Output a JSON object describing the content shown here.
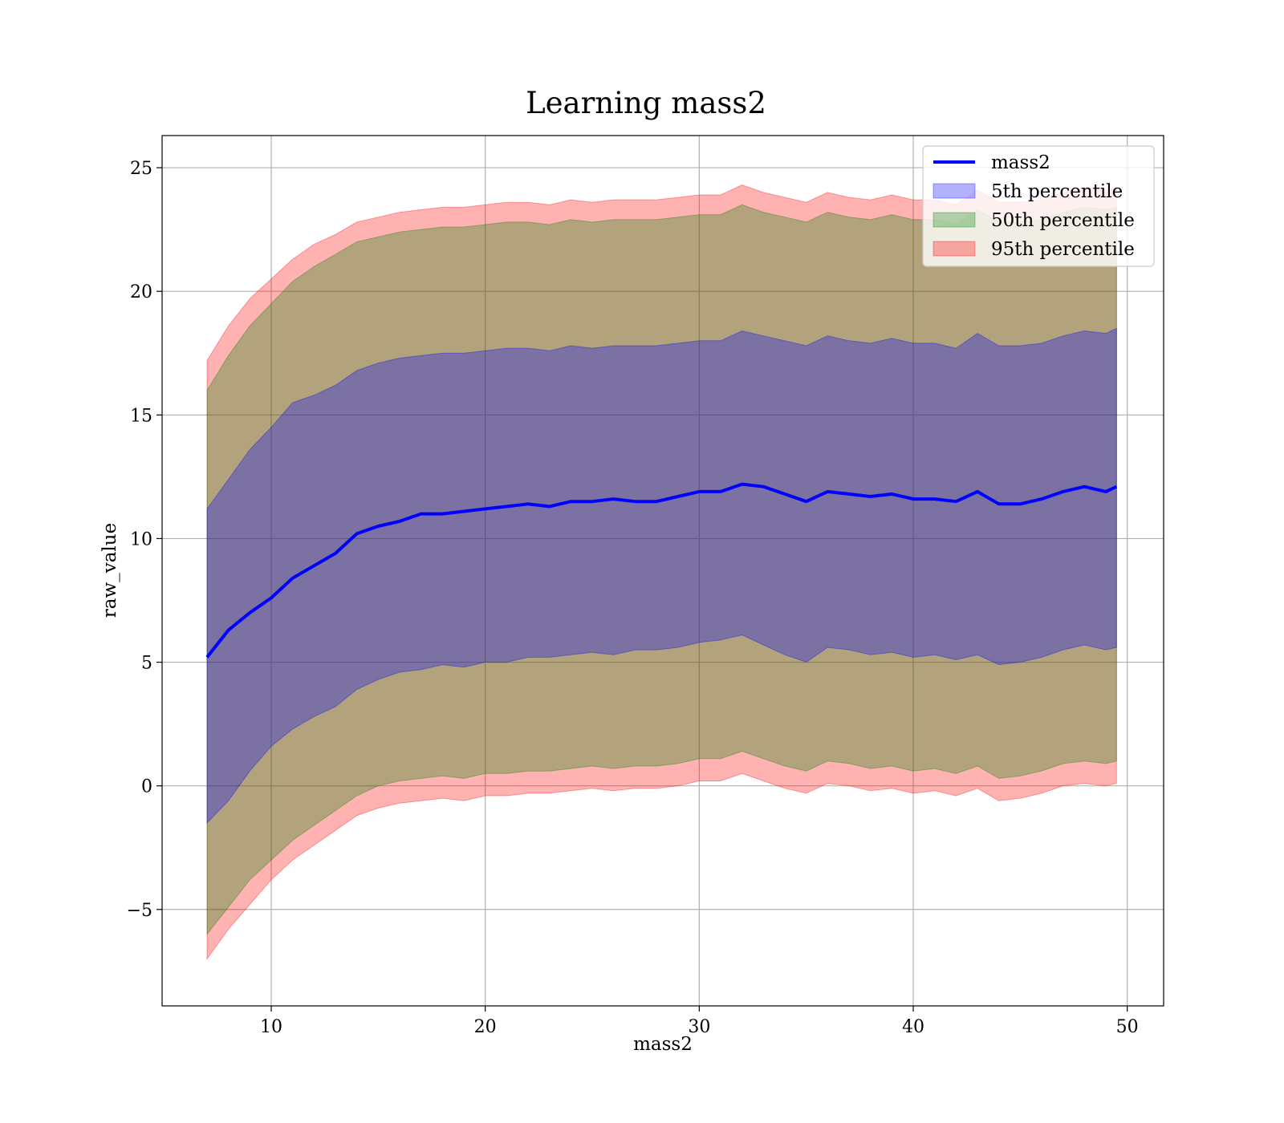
{
  "chart_data": {
    "type": "area",
    "title": "Learning mass2",
    "xlabel": "mass2",
    "ylabel": "raw_value",
    "xlim": [
      4.9,
      51.7
    ],
    "ylim": [
      -8.9,
      26.3
    ],
    "xticks": [
      10,
      20,
      30,
      40,
      50
    ],
    "xtick_labels": [
      "10",
      "20",
      "30",
      "40",
      "50"
    ],
    "yticks": [
      -5,
      0,
      5,
      10,
      15,
      20,
      25
    ],
    "ytick_labels": [
      "−5",
      "0",
      "5",
      "10",
      "15",
      "20",
      "25"
    ],
    "grid": true,
    "legend_position": "top-right",
    "x": [
      7,
      8,
      9,
      10,
      11,
      12,
      13,
      14,
      15,
      16,
      17,
      18,
      19,
      20,
      21,
      22,
      23,
      24,
      25,
      26,
      27,
      28,
      29,
      30,
      31,
      32,
      33,
      34,
      35,
      36,
      37,
      38,
      39,
      40,
      41,
      42,
      43,
      44,
      45,
      46,
      47,
      48,
      49,
      49.5
    ],
    "series": [
      {
        "name": "mass2",
        "kind": "line",
        "color": "#0000ff",
        "values": [
          5.2,
          6.3,
          7.0,
          7.6,
          8.4,
          8.9,
          9.4,
          10.2,
          10.5,
          10.7,
          11.0,
          11.0,
          11.1,
          11.2,
          11.3,
          11.4,
          11.3,
          11.5,
          11.5,
          11.6,
          11.5,
          11.5,
          11.7,
          11.9,
          11.9,
          12.2,
          12.1,
          11.8,
          11.5,
          11.9,
          11.8,
          11.7,
          11.8,
          11.6,
          11.6,
          11.5,
          11.9,
          11.4,
          11.4,
          11.6,
          11.9,
          12.1,
          11.9,
          12.1
        ]
      },
      {
        "name": "5th percentile",
        "kind": "band",
        "color": "#0000ff",
        "lower": [
          -1.5,
          -0.6,
          0.6,
          1.6,
          2.3,
          2.8,
          3.2,
          3.9,
          4.3,
          4.6,
          4.7,
          4.9,
          4.8,
          5.0,
          5.0,
          5.2,
          5.2,
          5.3,
          5.4,
          5.3,
          5.5,
          5.5,
          5.6,
          5.8,
          5.9,
          6.1,
          5.7,
          5.3,
          5.0,
          5.6,
          5.5,
          5.3,
          5.4,
          5.2,
          5.3,
          5.1,
          5.3,
          4.9,
          5.0,
          5.2,
          5.5,
          5.7,
          5.5,
          5.6
        ],
        "upper": [
          11.2,
          12.4,
          13.6,
          14.5,
          15.5,
          15.8,
          16.2,
          16.8,
          17.1,
          17.3,
          17.4,
          17.5,
          17.5,
          17.6,
          17.7,
          17.7,
          17.6,
          17.8,
          17.7,
          17.8,
          17.8,
          17.8,
          17.9,
          18.0,
          18.0,
          18.4,
          18.2,
          18.0,
          17.8,
          18.2,
          18.0,
          17.9,
          18.1,
          17.9,
          17.9,
          17.7,
          18.3,
          17.8,
          17.8,
          17.9,
          18.2,
          18.4,
          18.3,
          18.5
        ]
      },
      {
        "name": "50th percentile",
        "kind": "band",
        "color": "#008000",
        "lower": [
          -6.0,
          -4.9,
          -3.8,
          -3.0,
          -2.2,
          -1.6,
          -1.0,
          -0.4,
          0.0,
          0.2,
          0.3,
          0.4,
          0.3,
          0.5,
          0.5,
          0.6,
          0.6,
          0.7,
          0.8,
          0.7,
          0.8,
          0.8,
          0.9,
          1.1,
          1.1,
          1.4,
          1.1,
          0.8,
          0.6,
          1.0,
          0.9,
          0.7,
          0.8,
          0.6,
          0.7,
          0.5,
          0.8,
          0.3,
          0.4,
          0.6,
          0.9,
          1.0,
          0.9,
          1.0
        ],
        "upper": [
          16.0,
          17.4,
          18.6,
          19.5,
          20.4,
          21.0,
          21.5,
          22.0,
          22.2,
          22.4,
          22.5,
          22.6,
          22.6,
          22.7,
          22.8,
          22.8,
          22.7,
          22.9,
          22.8,
          22.9,
          22.9,
          22.9,
          23.0,
          23.1,
          23.1,
          23.5,
          23.2,
          23.0,
          22.8,
          23.2,
          23.0,
          22.9,
          23.1,
          22.9,
          22.9,
          22.7,
          23.3,
          22.8,
          22.8,
          22.9,
          23.2,
          23.4,
          23.3,
          23.4
        ]
      },
      {
        "name": "95th percentile",
        "kind": "band",
        "color": "#ff0000",
        "lower": [
          -7.0,
          -5.8,
          -4.8,
          -3.8,
          -3.0,
          -2.4,
          -1.8,
          -1.2,
          -0.9,
          -0.7,
          -0.6,
          -0.5,
          -0.6,
          -0.4,
          -0.4,
          -0.3,
          -0.3,
          -0.2,
          -0.1,
          -0.2,
          -0.1,
          -0.1,
          0.0,
          0.2,
          0.2,
          0.5,
          0.2,
          -0.1,
          -0.3,
          0.1,
          0.0,
          -0.2,
          -0.1,
          -0.3,
          -0.2,
          -0.4,
          -0.1,
          -0.6,
          -0.5,
          -0.3,
          0.0,
          0.1,
          0.0,
          0.1
        ],
        "upper": [
          17.2,
          18.6,
          19.7,
          20.5,
          21.3,
          21.9,
          22.3,
          22.8,
          23.0,
          23.2,
          23.3,
          23.4,
          23.4,
          23.5,
          23.6,
          23.6,
          23.5,
          23.7,
          23.6,
          23.7,
          23.7,
          23.7,
          23.8,
          23.9,
          23.9,
          24.3,
          24.0,
          23.8,
          23.6,
          24.0,
          23.8,
          23.7,
          23.9,
          23.7,
          23.7,
          23.5,
          24.1,
          23.6,
          23.6,
          23.7,
          24.0,
          24.2,
          24.1,
          24.2
        ]
      }
    ]
  }
}
